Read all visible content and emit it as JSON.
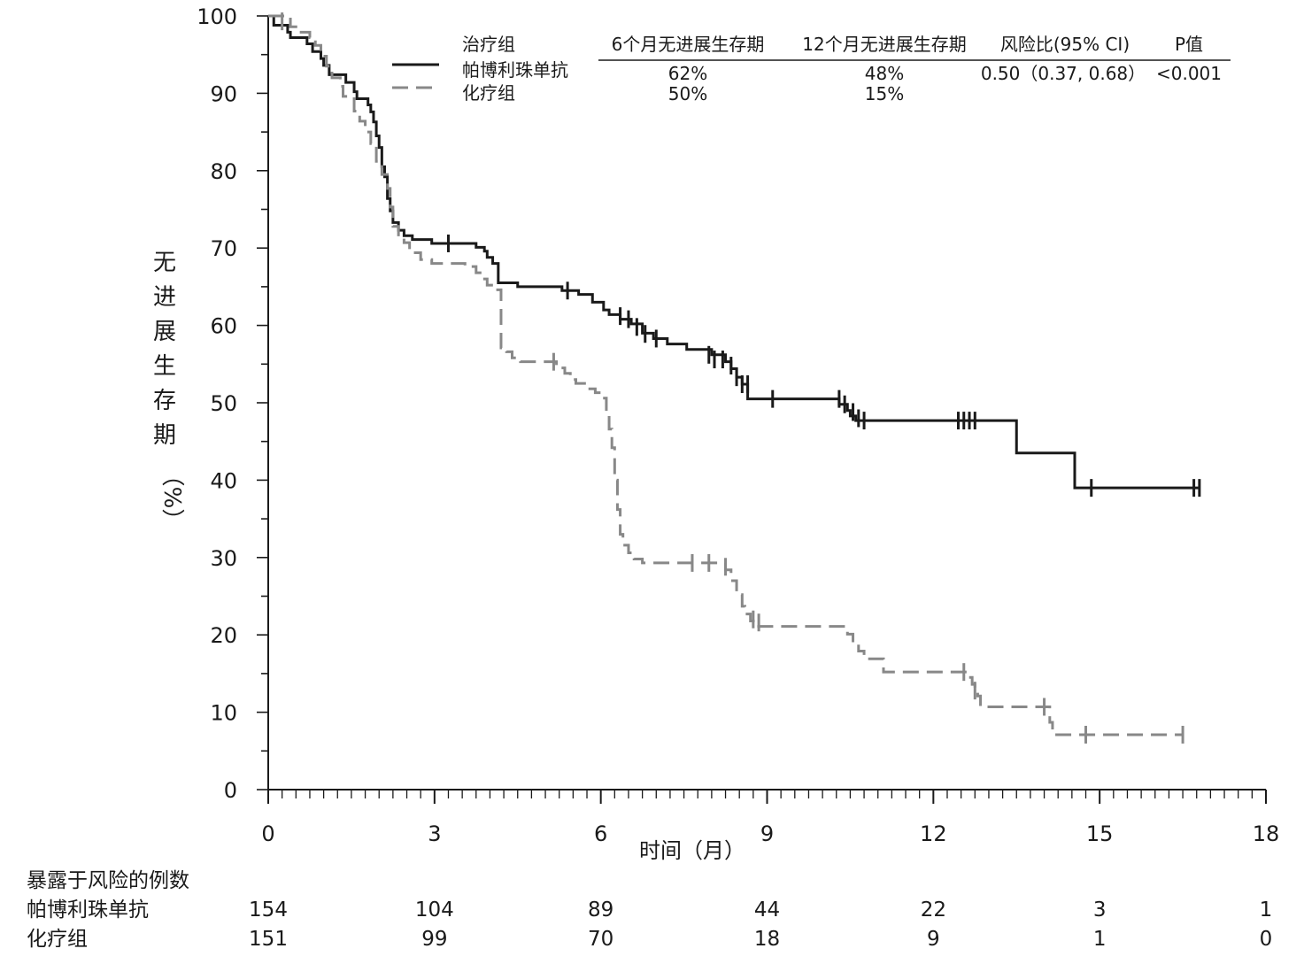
{
  "chart_data": {
    "type": "line",
    "subtype": "kaplan-meier",
    "xlabel": "时间（月）",
    "ylabel_chars": [
      "无",
      "进",
      "展",
      "生",
      "存",
      "期",
      "（%）"
    ],
    "xlim": [
      0,
      18
    ],
    "ylim": [
      0,
      100
    ],
    "x_ticks": [
      0,
      3,
      6,
      9,
      12,
      15,
      18
    ],
    "y_ticks": [
      0,
      10,
      20,
      30,
      40,
      50,
      60,
      70,
      80,
      90,
      100
    ],
    "legend": {
      "headers": [
        "治疗组",
        "6个月无进展生存期",
        "12个月无进展生存期",
        "风险比(95% CI)",
        "P值"
      ],
      "rows": [
        {
          "name": "帕博利珠单抗",
          "pfs6": "62%",
          "pfs12": "48%",
          "hr": "0.50（0.37, 0.68）",
          "p": "<0.001"
        },
        {
          "name": "化疗组",
          "pfs6": "50%",
          "pfs12": "15%",
          "hr": "",
          "p": ""
        }
      ]
    },
    "series": [
      {
        "name": "帕博利珠单抗",
        "color": "#1a1a1a",
        "style": "solid",
        "steps": [
          [
            0,
            100
          ],
          [
            0.1,
            98.8
          ],
          [
            0.35,
            97.9
          ],
          [
            0.4,
            97.2
          ],
          [
            0.7,
            96.4
          ],
          [
            0.8,
            95.4
          ],
          [
            0.95,
            94.5
          ],
          [
            1.0,
            93.6
          ],
          [
            1.1,
            92.4
          ],
          [
            1.4,
            91.4
          ],
          [
            1.55,
            90.2
          ],
          [
            1.6,
            89.3
          ],
          [
            1.8,
            88.5
          ],
          [
            1.85,
            87.6
          ],
          [
            1.9,
            86.3
          ],
          [
            1.95,
            84.5
          ],
          [
            2.0,
            83.0
          ],
          [
            2.05,
            80.5
          ],
          [
            2.1,
            79.2
          ],
          [
            2.15,
            76.4
          ],
          [
            2.2,
            74.8
          ],
          [
            2.25,
            73.3
          ],
          [
            2.35,
            72.3
          ],
          [
            2.45,
            71.6
          ],
          [
            2.6,
            71.1
          ],
          [
            2.95,
            70.6
          ],
          [
            3.5,
            70.6
          ],
          [
            3.75,
            70.1
          ],
          [
            3.9,
            69.6
          ],
          [
            3.95,
            68.8
          ],
          [
            4.05,
            68.0
          ],
          [
            4.15,
            65.5
          ],
          [
            4.5,
            65.0
          ],
          [
            5.3,
            64.5
          ],
          [
            5.6,
            64.0
          ],
          [
            5.85,
            63.0
          ],
          [
            6.05,
            62.0
          ],
          [
            6.15,
            61.4
          ],
          [
            6.35,
            60.8
          ],
          [
            6.55,
            60.2
          ],
          [
            6.75,
            59.0
          ],
          [
            6.95,
            58.3
          ],
          [
            7.2,
            57.6
          ],
          [
            7.55,
            56.9
          ],
          [
            8.0,
            56.2
          ],
          [
            8.25,
            55.3
          ],
          [
            8.35,
            54.4
          ],
          [
            8.45,
            53.3
          ],
          [
            8.55,
            52.4
          ],
          [
            8.65,
            50.5
          ],
          [
            10.3,
            49.8
          ],
          [
            10.45,
            49.0
          ],
          [
            10.5,
            48.3
          ],
          [
            10.6,
            47.7
          ],
          [
            13.45,
            47.7
          ],
          [
            13.5,
            43.5
          ],
          [
            14.5,
            43.5
          ],
          [
            14.55,
            39.0
          ],
          [
            16.8,
            39.0
          ]
        ],
        "censors": [
          [
            3.25,
            70.6
          ],
          [
            5.4,
            64.5
          ],
          [
            6.35,
            61.2
          ],
          [
            6.5,
            60.8
          ],
          [
            6.65,
            59.8
          ],
          [
            6.8,
            58.9
          ],
          [
            7.0,
            58.3
          ],
          [
            7.95,
            56.2
          ],
          [
            8.05,
            55.6
          ],
          [
            8.2,
            55.6
          ],
          [
            8.35,
            54.8
          ],
          [
            8.45,
            53.3
          ],
          [
            8.55,
            52.4
          ],
          [
            8.65,
            52.4
          ],
          [
            9.1,
            50.5
          ],
          [
            10.3,
            50.5
          ],
          [
            10.4,
            49.8
          ],
          [
            10.55,
            48.8
          ],
          [
            10.65,
            48.0
          ],
          [
            10.75,
            47.7
          ],
          [
            12.45,
            47.7
          ],
          [
            12.55,
            47.7
          ],
          [
            12.65,
            47.7
          ],
          [
            12.75,
            47.7
          ],
          [
            14.85,
            39.0
          ],
          [
            16.7,
            39.0
          ],
          [
            16.8,
            39.0
          ]
        ]
      },
      {
        "name": "化疗组",
        "color": "#888888",
        "style": "dashed",
        "steps": [
          [
            0,
            100
          ],
          [
            0.4,
            98.6
          ],
          [
            0.55,
            97.9
          ],
          [
            0.75,
            97.2
          ],
          [
            0.85,
            96.2
          ],
          [
            0.95,
            94.8
          ],
          [
            1.05,
            93.5
          ],
          [
            1.15,
            92.0
          ],
          [
            1.3,
            90.9
          ],
          [
            1.35,
            89.6
          ],
          [
            1.55,
            87.7
          ],
          [
            1.65,
            86.4
          ],
          [
            1.75,
            85.0
          ],
          [
            1.85,
            83.5
          ],
          [
            1.95,
            81.2
          ],
          [
            2.05,
            79.5
          ],
          [
            2.15,
            77.7
          ],
          [
            2.2,
            75.3
          ],
          [
            2.25,
            72.8
          ],
          [
            2.35,
            71.4
          ],
          [
            2.45,
            70.7
          ],
          [
            2.55,
            69.4
          ],
          [
            2.75,
            68.5
          ],
          [
            2.95,
            68.0
          ],
          [
            3.55,
            67.6
          ],
          [
            3.75,
            66.8
          ],
          [
            3.85,
            66.0
          ],
          [
            3.95,
            65.2
          ],
          [
            4.1,
            64.6
          ],
          [
            4.2,
            57.1
          ],
          [
            4.3,
            56.6
          ],
          [
            4.4,
            55.8
          ],
          [
            4.55,
            55.3
          ],
          [
            5.2,
            54.5
          ],
          [
            5.35,
            53.8
          ],
          [
            5.45,
            53.0
          ],
          [
            5.55,
            52.5
          ],
          [
            5.75,
            51.8
          ],
          [
            5.9,
            51.3
          ],
          [
            6.0,
            50.6
          ],
          [
            6.1,
            48.4
          ],
          [
            6.15,
            46.6
          ],
          [
            6.2,
            44.2
          ],
          [
            6.25,
            40.0
          ],
          [
            6.3,
            36.2
          ],
          [
            6.35,
            33.0
          ],
          [
            6.4,
            31.6
          ],
          [
            6.5,
            30.6
          ],
          [
            6.6,
            29.8
          ],
          [
            6.75,
            29.3
          ],
          [
            8.15,
            29.3
          ],
          [
            8.25,
            28.4
          ],
          [
            8.35,
            27.0
          ],
          [
            8.45,
            25.2
          ],
          [
            8.55,
            23.7
          ],
          [
            8.6,
            22.7
          ],
          [
            8.7,
            21.8
          ],
          [
            8.8,
            21.1
          ],
          [
            10.35,
            21.1
          ],
          [
            10.45,
            20.1
          ],
          [
            10.55,
            18.9
          ],
          [
            10.65,
            17.9
          ],
          [
            10.75,
            16.9
          ],
          [
            11.1,
            15.2
          ],
          [
            12.5,
            15.2
          ],
          [
            12.6,
            14.5
          ],
          [
            12.7,
            13.6
          ],
          [
            12.75,
            12.8
          ],
          [
            12.8,
            12.1
          ],
          [
            12.85,
            10.7
          ],
          [
            14.0,
            10.7
          ],
          [
            14.1,
            8.7
          ],
          [
            14.15,
            7.1
          ],
          [
            16.5,
            7.1
          ]
        ],
        "censors": [
          [
            0.25,
            99.3
          ],
          [
            5.15,
            55.3
          ],
          [
            7.65,
            29.3
          ],
          [
            7.95,
            29.3
          ],
          [
            8.25,
            28.8
          ],
          [
            8.75,
            22.0
          ],
          [
            8.85,
            21.6
          ],
          [
            12.55,
            15.2
          ],
          [
            12.75,
            12.8
          ],
          [
            14.0,
            10.7
          ],
          [
            14.75,
            7.1
          ],
          [
            16.5,
            7.1
          ]
        ]
      }
    ],
    "risk_table": {
      "title": "暴露于风险的例数",
      "rows": [
        {
          "label": "帕博利珠单抗",
          "values": [
            "154",
            "104",
            "89",
            "44",
            "22",
            "3",
            "1"
          ]
        },
        {
          "label": "化疗组",
          "values": [
            "151",
            "99",
            "70",
            "18",
            "9",
            "1",
            "0"
          ]
        }
      ]
    }
  }
}
